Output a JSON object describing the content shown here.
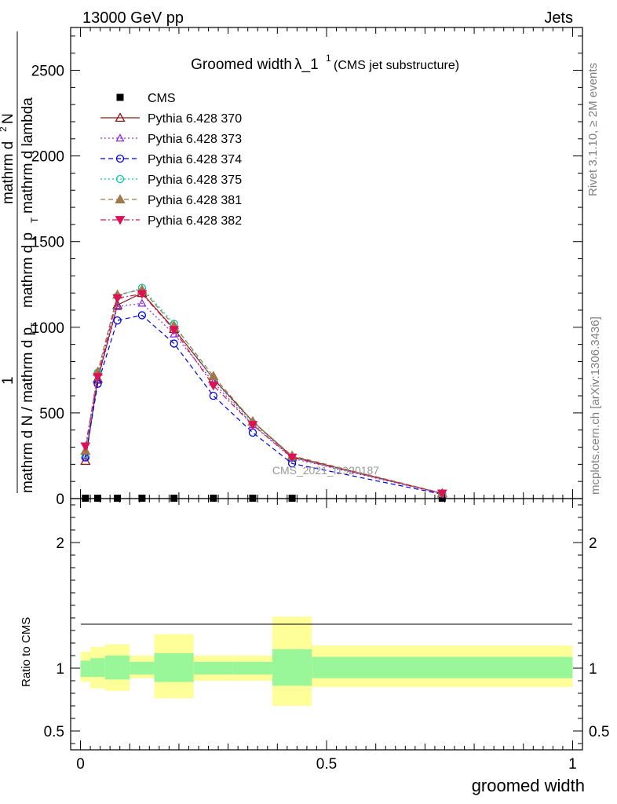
{
  "header": {
    "left": "13000 GeV pp",
    "right": "Jets"
  },
  "title": {
    "main": "Groomed width",
    "lambda": "λ_1",
    "sup": "1",
    "sub": "(CMS jet substructure)"
  },
  "side_labels": {
    "rivet": "Rivet 3.1.10, ≥ 2M events",
    "mcplots": "mcplots.cern.ch [arXiv:1306.3436]"
  },
  "watermark": "CMS_2021_I1920187",
  "ylabel_main": {
    "numerator_prefix": "1",
    "numerator_mid": "mathrm d",
    "numerator_sup": "2",
    "numerator_end": "N",
    "denominator_a": "mathrm d N / mathrm d p",
    "denominator_a_sub": "T",
    "denominator_b": "mathrm d p",
    "denominator_b_sub": "T",
    "denominator_c": "mathrm d lambda"
  },
  "ylabel_ratio": "Ratio to CMS",
  "xlabel": "groomed width",
  "legend": [
    {
      "label": "CMS",
      "color": "#000000",
      "marker": "square",
      "dash": "none"
    },
    {
      "label": "Pythia 6.428 370",
      "color": "#8b1a1a",
      "marker": "triangle-open",
      "dash": "solid"
    },
    {
      "label": "Pythia 6.428 373",
      "color": "#8a2be2",
      "marker": "triangle-open-small",
      "dash": "dotted"
    },
    {
      "label": "Pythia 6.428 374",
      "color": "#0000dd",
      "marker": "circle-open",
      "dash": "dashed"
    },
    {
      "label": "Pythia 6.428 375",
      "color": "#00ccaa",
      "marker": "circle-open",
      "dash": "dotted"
    },
    {
      "label": "Pythia 6.428 381",
      "color": "#a0784a",
      "marker": "triangle-filled",
      "dash": "dashed"
    },
    {
      "label": "Pythia 6.428 382",
      "color": "#dd1155",
      "marker": "triangle-down-filled",
      "dash": "dashdot"
    }
  ],
  "chart_data": {
    "type": "line",
    "xlabel": "groomed width",
    "xlim": [
      -0.02,
      1.02
    ],
    "ylim": [
      0,
      2750
    ],
    "ratio_ylim": [
      0.35,
      2.35
    ],
    "x_ticks": [
      0,
      0.5,
      1
    ],
    "x_tick_labels": [
      "0",
      "0.5",
      "1"
    ],
    "y_ticks": [
      0,
      500,
      1000,
      1500,
      2000,
      2500
    ],
    "y_tick_labels": [
      "0",
      "500",
      "1000",
      "1500",
      "2000",
      "2500"
    ],
    "ratio_ticks": [
      0.5,
      1,
      2
    ],
    "ratio_tick_labels": [
      "0.5",
      "1",
      "2"
    ],
    "bins": [
      [
        0.0,
        0.02
      ],
      [
        0.02,
        0.05
      ],
      [
        0.05,
        0.1
      ],
      [
        0.1,
        0.15
      ],
      [
        0.15,
        0.23
      ],
      [
        0.23,
        0.31
      ],
      [
        0.31,
        0.39
      ],
      [
        0.39,
        0.47
      ],
      [
        0.47,
        1.0
      ]
    ],
    "x": [
      0.01,
      0.035,
      0.075,
      0.125,
      0.19,
      0.27,
      0.35,
      0.43,
      0.735
    ],
    "data": {
      "name": "CMS",
      "values": [
        2,
        2,
        2,
        2,
        2,
        2,
        2,
        2,
        2
      ]
    },
    "series": [
      {
        "name": "Pythia 6.428 370",
        "values": [
          220,
          700,
          1130,
          1200,
          990,
          700,
          450,
          245,
          30
        ]
      },
      {
        "name": "Pythia 6.428 373",
        "values": [
          250,
          690,
          1120,
          1140,
          960,
          680,
          430,
          235,
          28
        ]
      },
      {
        "name": "Pythia 6.428 374",
        "values": [
          240,
          670,
          1040,
          1070,
          905,
          600,
          385,
          205,
          25
        ]
      },
      {
        "name": "Pythia 6.428 375",
        "values": [
          260,
          735,
          1180,
          1230,
          1020,
          695,
          440,
          240,
          30
        ]
      },
      {
        "name": "Pythia 6.428 381",
        "values": [
          280,
          740,
          1190,
          1220,
          1010,
          715,
          450,
          250,
          32
        ]
      },
      {
        "name": "Pythia 6.428 382",
        "values": [
          305,
          710,
          1170,
          1195,
          985,
          660,
          430,
          240,
          30
        ]
      }
    ],
    "ratio_bands": {
      "inner": [
        [
          0.93,
          1.06
        ],
        [
          0.93,
          1.08
        ],
        [
          0.91,
          1.1
        ],
        [
          0.95,
          1.05
        ],
        [
          0.89,
          1.12
        ],
        [
          0.95,
          1.05
        ],
        [
          0.95,
          1.05
        ],
        [
          0.86,
          1.15
        ],
        [
          0.92,
          1.09
        ]
      ],
      "outer": [
        [
          0.89,
          1.13
        ],
        [
          0.84,
          1.17
        ],
        [
          0.82,
          1.19
        ],
        [
          0.92,
          1.1
        ],
        [
          0.76,
          1.27
        ],
        [
          0.9,
          1.1
        ],
        [
          0.9,
          1.1
        ],
        [
          0.7,
          1.41
        ],
        [
          0.85,
          1.18
        ]
      ]
    },
    "band_colors": {
      "inner": "#99f799",
      "outer": "#ffff99"
    },
    "grid": false,
    "legend_position": "top-left"
  }
}
